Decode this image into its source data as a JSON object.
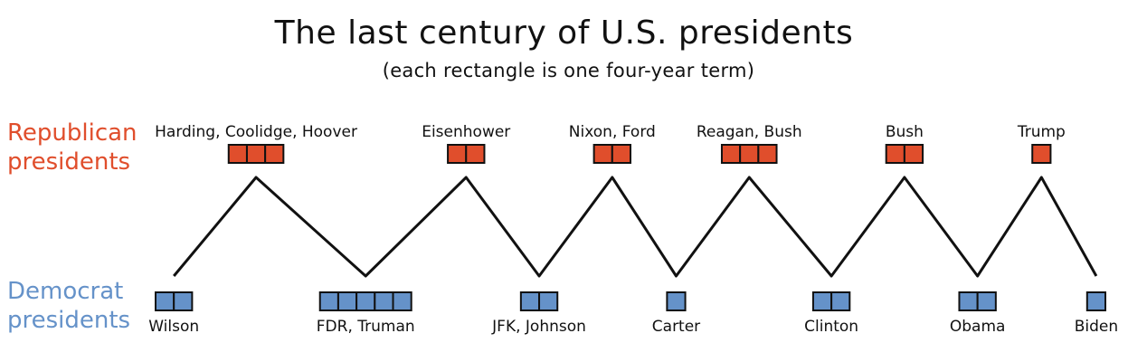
{
  "title": "The last century of U.S. presidents",
  "subtitle": "(each rectangle is one four-year term)",
  "colors": {
    "republican": "#e04e2c",
    "democrat": "#6592c9",
    "line": "#111111"
  },
  "parties": {
    "republican": {
      "label_line1": "Republican",
      "label_line2": "presidents"
    },
    "democrat": {
      "label_line1": "Democrat",
      "label_line2": "presidents"
    }
  },
  "eras": [
    {
      "party": "democrat",
      "label": "Wilson",
      "terms": 2
    },
    {
      "party": "republican",
      "label": "Harding, Coolidge, Hoover",
      "terms": 3
    },
    {
      "party": "democrat",
      "label": "FDR, Truman",
      "terms": 5
    },
    {
      "party": "republican",
      "label": "Eisenhower",
      "terms": 2
    },
    {
      "party": "democrat",
      "label": "JFK, Johnson",
      "terms": 2
    },
    {
      "party": "republican",
      "label": "Nixon, Ford",
      "terms": 2
    },
    {
      "party": "democrat",
      "label": "Carter",
      "terms": 1
    },
    {
      "party": "republican",
      "label": "Reagan, Bush",
      "terms": 3
    },
    {
      "party": "democrat",
      "label": "Clinton",
      "terms": 2
    },
    {
      "party": "republican",
      "label": "Bush",
      "terms": 2
    },
    {
      "party": "democrat",
      "label": "Obama",
      "terms": 2
    },
    {
      "party": "republican",
      "label": "Trump",
      "terms": 1
    },
    {
      "party": "democrat",
      "label": "Biden",
      "terms": 1
    }
  ]
}
